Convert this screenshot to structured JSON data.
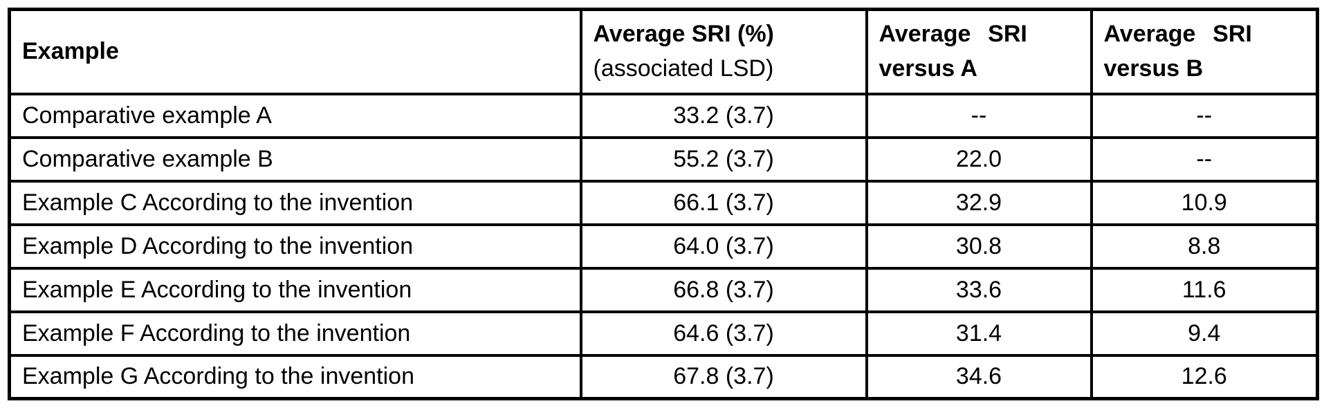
{
  "page": {
    "background_color": "#ffffff",
    "border_color": "#000000",
    "text_color": "#000000"
  },
  "table": {
    "column_ids": [
      "example",
      "average-sri",
      "sri-versus-a",
      "sri-versus-b"
    ],
    "header": {
      "example": {
        "label": "Example"
      },
      "average_sri": {
        "line1": "Average SRI (%)",
        "line2": "(associated LSD)"
      },
      "versus_a": {
        "line1": "Average SRI",
        "line2": "versus A"
      },
      "versus_b": {
        "line1": "Average SRI",
        "line2": "versus B"
      }
    },
    "rows": [
      {
        "cells": [
          "Comparative example A",
          "33.2 (3.7)",
          "--",
          "--"
        ]
      },
      {
        "cells": [
          "Comparative example B",
          "55.2 (3.7)",
          "22.0",
          "--"
        ]
      },
      {
        "cells": [
          "Example C According to the invention",
          "66.1 (3.7)",
          "32.9",
          "10.9"
        ]
      },
      {
        "cells": [
          "Example D According to the invention",
          "64.0 (3.7)",
          "30.8",
          "8.8"
        ]
      },
      {
        "cells": [
          "Example E According to the invention",
          "66.8 (3.7)",
          "33.6",
          "11.6"
        ]
      },
      {
        "cells": [
          "Example F According to the invention",
          "64.6 (3.7)",
          "31.4",
          "9.4"
        ]
      },
      {
        "cells": [
          "Example G According to the invention",
          "67.8 (3.7)",
          "34.6",
          "12.6"
        ]
      }
    ]
  }
}
